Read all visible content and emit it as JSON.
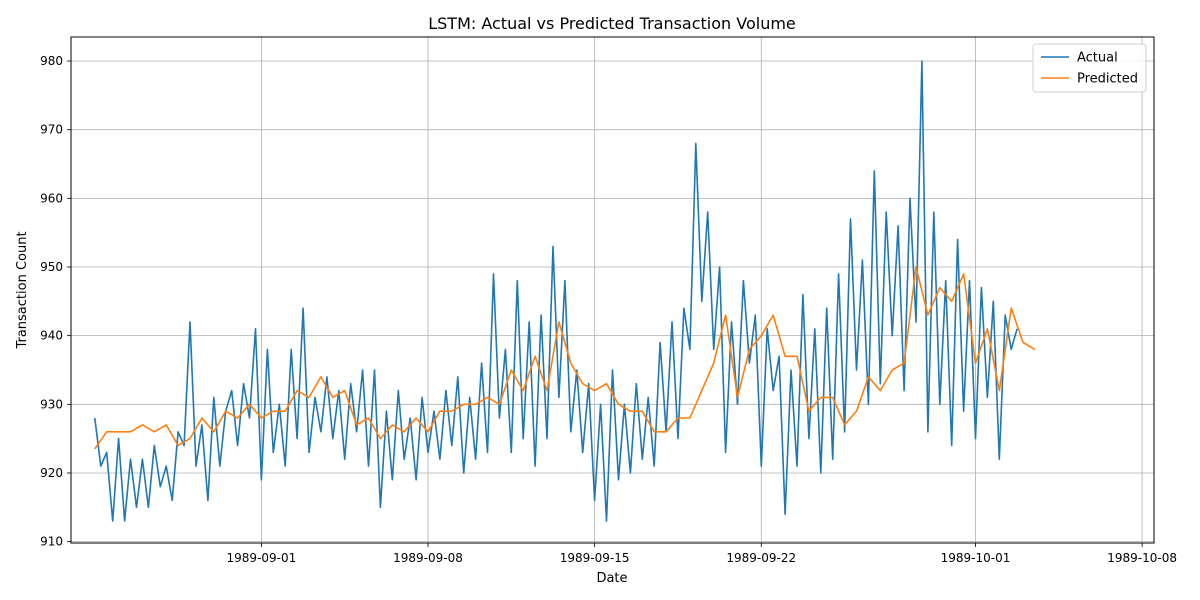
{
  "chart_data": {
    "type": "line",
    "title": "LSTM: Actual vs Predicted Transaction Volume",
    "xlabel": "Date",
    "ylabel": "Transaction Count",
    "x_ticks": [
      "1989-09-01",
      "1989-09-08",
      "1989-09-15",
      "1989-09-22",
      "1989-10-01",
      "1989-10-08"
    ],
    "x_range": [
      "1989-08-24T00:00",
      "1989-10-08T12:00"
    ],
    "y_ticks": [
      910,
      920,
      930,
      940,
      950,
      960,
      970,
      980
    ],
    "ylim": [
      909.8,
      983.5
    ],
    "grid": true,
    "legend_position": "top-right",
    "series": [
      {
        "name": "Actual",
        "color": "#1f77b4",
        "points": [
          [
            "1989-08-25T00:00",
            928
          ],
          [
            "1989-08-25T06:00",
            921
          ],
          [
            "1989-08-25T12:00",
            923
          ],
          [
            "1989-08-25T18:00",
            913
          ],
          [
            "1989-08-26T00:00",
            925
          ],
          [
            "1989-08-26T06:00",
            913
          ],
          [
            "1989-08-26T12:00",
            922
          ],
          [
            "1989-08-26T18:00",
            915
          ],
          [
            "1989-08-27T00:00",
            922
          ],
          [
            "1989-08-27T06:00",
            915
          ],
          [
            "1989-08-27T12:00",
            924
          ],
          [
            "1989-08-27T18:00",
            918
          ],
          [
            "1989-08-28T00:00",
            921
          ],
          [
            "1989-08-28T06:00",
            916
          ],
          [
            "1989-08-28T12:00",
            926
          ],
          [
            "1989-08-28T18:00",
            924
          ],
          [
            "1989-08-29T00:00",
            942
          ],
          [
            "1989-08-29T06:00",
            921
          ],
          [
            "1989-08-29T12:00",
            927
          ],
          [
            "1989-08-29T18:00",
            916
          ],
          [
            "1989-08-30T00:00",
            931
          ],
          [
            "1989-08-30T06:00",
            921
          ],
          [
            "1989-08-30T12:00",
            929
          ],
          [
            "1989-08-30T18:00",
            932
          ],
          [
            "1989-08-31T00:00",
            924
          ],
          [
            "1989-08-31T06:00",
            933
          ],
          [
            "1989-08-31T12:00",
            928
          ],
          [
            "1989-08-31T18:00",
            941
          ],
          [
            "1989-09-01T00:00",
            919
          ],
          [
            "1989-09-01T06:00",
            938
          ],
          [
            "1989-09-01T12:00",
            923
          ],
          [
            "1989-09-01T18:00",
            930
          ],
          [
            "1989-09-02T00:00",
            921
          ],
          [
            "1989-09-02T06:00",
            938
          ],
          [
            "1989-09-02T12:00",
            925
          ],
          [
            "1989-09-02T18:00",
            944
          ],
          [
            "1989-09-03T00:00",
            923
          ],
          [
            "1989-09-03T06:00",
            931
          ],
          [
            "1989-09-03T12:00",
            926
          ],
          [
            "1989-09-03T18:00",
            934
          ],
          [
            "1989-09-04T00:00",
            925
          ],
          [
            "1989-09-04T06:00",
            932
          ],
          [
            "1989-09-04T12:00",
            922
          ],
          [
            "1989-09-04T18:00",
            933
          ],
          [
            "1989-09-05T00:00",
            926
          ],
          [
            "1989-09-05T06:00",
            935
          ],
          [
            "1989-09-05T12:00",
            921
          ],
          [
            "1989-09-05T18:00",
            935
          ],
          [
            "1989-09-06T00:00",
            915
          ],
          [
            "1989-09-06T06:00",
            929
          ],
          [
            "1989-09-06T12:00",
            919
          ],
          [
            "1989-09-06T18:00",
            932
          ],
          [
            "1989-09-07T00:00",
            922
          ],
          [
            "1989-09-07T06:00",
            928
          ],
          [
            "1989-09-07T12:00",
            919
          ],
          [
            "1989-09-07T18:00",
            931
          ],
          [
            "1989-09-08T00:00",
            923
          ],
          [
            "1989-09-08T06:00",
            929
          ],
          [
            "1989-09-08T12:00",
            922
          ],
          [
            "1989-09-08T18:00",
            932
          ],
          [
            "1989-09-09T00:00",
            924
          ],
          [
            "1989-09-09T06:00",
            934
          ],
          [
            "1989-09-09T12:00",
            920
          ],
          [
            "1989-09-09T18:00",
            931
          ],
          [
            "1989-09-10T00:00",
            922
          ],
          [
            "1989-09-10T06:00",
            936
          ],
          [
            "1989-09-10T12:00",
            923
          ],
          [
            "1989-09-10T18:00",
            949
          ],
          [
            "1989-09-11T00:00",
            928
          ],
          [
            "1989-09-11T06:00",
            938
          ],
          [
            "1989-09-11T12:00",
            923
          ],
          [
            "1989-09-11T18:00",
            948
          ],
          [
            "1989-09-12T00:00",
            925
          ],
          [
            "1989-09-12T06:00",
            942
          ],
          [
            "1989-09-12T12:00",
            921
          ],
          [
            "1989-09-12T18:00",
            943
          ],
          [
            "1989-09-13T00:00",
            925
          ],
          [
            "1989-09-13T06:00",
            953
          ],
          [
            "1989-09-13T12:00",
            931
          ],
          [
            "1989-09-13T18:00",
            948
          ],
          [
            "1989-09-14T00:00",
            926
          ],
          [
            "1989-09-14T06:00",
            935
          ],
          [
            "1989-09-14T12:00",
            923
          ],
          [
            "1989-09-14T18:00",
            933
          ],
          [
            "1989-09-15T00:00",
            916
          ],
          [
            "1989-09-15T06:00",
            930
          ],
          [
            "1989-09-15T12:00",
            913
          ],
          [
            "1989-09-15T18:00",
            935
          ],
          [
            "1989-09-16T00:00",
            919
          ],
          [
            "1989-09-16T06:00",
            930
          ],
          [
            "1989-09-16T12:00",
            920
          ],
          [
            "1989-09-16T18:00",
            933
          ],
          [
            "1989-09-17T00:00",
            922
          ],
          [
            "1989-09-17T06:00",
            931
          ],
          [
            "1989-09-17T12:00",
            921
          ],
          [
            "1989-09-17T18:00",
            939
          ],
          [
            "1989-09-18T00:00",
            926
          ],
          [
            "1989-09-18T06:00",
            942
          ],
          [
            "1989-09-18T12:00",
            925
          ],
          [
            "1989-09-18T18:00",
            944
          ],
          [
            "1989-09-19T00:00",
            938
          ],
          [
            "1989-09-19T06:00",
            968
          ],
          [
            "1989-09-19T12:00",
            945
          ],
          [
            "1989-09-19T18:00",
            958
          ],
          [
            "1989-09-20T00:00",
            938
          ],
          [
            "1989-09-20T06:00",
            950
          ],
          [
            "1989-09-20T12:00",
            923
          ],
          [
            "1989-09-20T18:00",
            942
          ],
          [
            "1989-09-21T00:00",
            930
          ],
          [
            "1989-09-21T06:00",
            948
          ],
          [
            "1989-09-21T12:00",
            936
          ],
          [
            "1989-09-21T18:00",
            943
          ],
          [
            "1989-09-22T00:00",
            921
          ],
          [
            "1989-09-22T06:00",
            941
          ],
          [
            "1989-09-22T12:00",
            932
          ],
          [
            "1989-09-22T18:00",
            937
          ],
          [
            "1989-09-23T00:00",
            914
          ],
          [
            "1989-09-23T06:00",
            935
          ],
          [
            "1989-09-23T12:00",
            921
          ],
          [
            "1989-09-23T18:00",
            946
          ],
          [
            "1989-09-24T00:00",
            925
          ],
          [
            "1989-09-24T06:00",
            941
          ],
          [
            "1989-09-24T12:00",
            920
          ],
          [
            "1989-09-24T18:00",
            944
          ],
          [
            "1989-09-25T00:00",
            922
          ],
          [
            "1989-09-25T06:00",
            949
          ],
          [
            "1989-09-25T12:00",
            926
          ],
          [
            "1989-09-25T18:00",
            957
          ],
          [
            "1989-09-26T00:00",
            935
          ],
          [
            "1989-09-26T06:00",
            951
          ],
          [
            "1989-09-26T12:00",
            930
          ],
          [
            "1989-09-26T18:00",
            964
          ],
          [
            "1989-09-27T00:00",
            933
          ],
          [
            "1989-09-27T06:00",
            958
          ],
          [
            "1989-09-27T12:00",
            940
          ],
          [
            "1989-09-27T18:00",
            956
          ],
          [
            "1989-09-28T00:00",
            932
          ],
          [
            "1989-09-28T06:00",
            960
          ],
          [
            "1989-09-28T12:00",
            942
          ],
          [
            "1989-09-28T18:00",
            980
          ],
          [
            "1989-09-29T00:00",
            926
          ],
          [
            "1989-09-29T06:00",
            958
          ],
          [
            "1989-09-29T12:00",
            930
          ],
          [
            "1989-09-29T18:00",
            948
          ],
          [
            "1989-09-30T00:00",
            924
          ],
          [
            "1989-09-30T06:00",
            954
          ],
          [
            "1989-09-30T12:00",
            929
          ],
          [
            "1989-09-30T18:00",
            948
          ],
          [
            "1989-10-01T00:00",
            925
          ],
          [
            "1989-10-01T06:00",
            947
          ],
          [
            "1989-10-01T12:00",
            931
          ],
          [
            "1989-10-01T18:00",
            945
          ],
          [
            "1989-10-02T00:00",
            922
          ],
          [
            "1989-10-02T06:00",
            943
          ],
          [
            "1989-10-02T12:00",
            938
          ],
          [
            "1989-10-02T18:00",
            941
          ]
        ]
      },
      {
        "name": "Predicted",
        "color": "#ff7f0e",
        "points": [
          [
            "1989-08-25T00:00",
            923.5
          ],
          [
            "1989-08-25T12:00",
            926
          ],
          [
            "1989-08-26T00:00",
            926
          ],
          [
            "1989-08-26T12:00",
            926
          ],
          [
            "1989-08-27T00:00",
            927
          ],
          [
            "1989-08-27T12:00",
            926
          ],
          [
            "1989-08-28T00:00",
            927
          ],
          [
            "1989-08-28T12:00",
            924
          ],
          [
            "1989-08-29T00:00",
            925
          ],
          [
            "1989-08-29T12:00",
            928
          ],
          [
            "1989-08-30T00:00",
            926
          ],
          [
            "1989-08-30T12:00",
            929
          ],
          [
            "1989-08-31T00:00",
            928
          ],
          [
            "1989-08-31T12:00",
            930
          ],
          [
            "1989-09-01T00:00",
            928
          ],
          [
            "1989-09-01T12:00",
            929
          ],
          [
            "1989-09-02T00:00",
            929
          ],
          [
            "1989-09-02T12:00",
            932
          ],
          [
            "1989-09-03T00:00",
            931
          ],
          [
            "1989-09-03T12:00",
            934
          ],
          [
            "1989-09-04T00:00",
            931
          ],
          [
            "1989-09-04T12:00",
            932
          ],
          [
            "1989-09-05T00:00",
            927
          ],
          [
            "1989-09-05T12:00",
            928
          ],
          [
            "1989-09-06T00:00",
            925
          ],
          [
            "1989-09-06T12:00",
            927
          ],
          [
            "1989-09-07T00:00",
            926
          ],
          [
            "1989-09-07T12:00",
            928
          ],
          [
            "1989-09-08T00:00",
            926
          ],
          [
            "1989-09-08T12:00",
            929
          ],
          [
            "1989-09-09T00:00",
            929
          ],
          [
            "1989-09-09T12:00",
            930
          ],
          [
            "1989-09-10T00:00",
            930
          ],
          [
            "1989-09-10T12:00",
            931
          ],
          [
            "1989-09-11T00:00",
            930
          ],
          [
            "1989-09-11T12:00",
            935
          ],
          [
            "1989-09-12T00:00",
            932
          ],
          [
            "1989-09-12T12:00",
            937
          ],
          [
            "1989-09-13T00:00",
            932
          ],
          [
            "1989-09-13T12:00",
            942
          ],
          [
            "1989-09-14T00:00",
            936
          ],
          [
            "1989-09-14T12:00",
            933
          ],
          [
            "1989-09-15T00:00",
            932
          ],
          [
            "1989-09-15T12:00",
            933
          ],
          [
            "1989-09-16T00:00",
            930
          ],
          [
            "1989-09-16T12:00",
            929
          ],
          [
            "1989-09-17T00:00",
            929
          ],
          [
            "1989-09-17T12:00",
            926
          ],
          [
            "1989-09-18T00:00",
            926
          ],
          [
            "1989-09-18T12:00",
            928
          ],
          [
            "1989-09-19T00:00",
            928
          ],
          [
            "1989-09-19T12:00",
            932
          ],
          [
            "1989-09-20T00:00",
            936
          ],
          [
            "1989-09-20T12:00",
            943
          ],
          [
            "1989-09-21T00:00",
            931
          ],
          [
            "1989-09-21T12:00",
            938
          ],
          [
            "1989-09-22T00:00",
            940
          ],
          [
            "1989-09-22T12:00",
            943
          ],
          [
            "1989-09-23T00:00",
            937
          ],
          [
            "1989-09-23T12:00",
            937
          ],
          [
            "1989-09-24T00:00",
            929
          ],
          [
            "1989-09-24T12:00",
            931
          ],
          [
            "1989-09-25T00:00",
            931
          ],
          [
            "1989-09-25T12:00",
            927
          ],
          [
            "1989-09-26T00:00",
            929
          ],
          [
            "1989-09-26T12:00",
            934
          ],
          [
            "1989-09-27T00:00",
            932
          ],
          [
            "1989-09-27T12:00",
            935
          ],
          [
            "1989-09-28T00:00",
            936
          ],
          [
            "1989-09-28T12:00",
            950
          ],
          [
            "1989-09-29T00:00",
            943
          ],
          [
            "1989-09-29T12:00",
            947
          ],
          [
            "1989-09-30T00:00",
            945
          ],
          [
            "1989-09-30T12:00",
            949
          ],
          [
            "1989-10-01T00:00",
            936
          ],
          [
            "1989-10-01T12:00",
            941
          ],
          [
            "1989-10-02T00:00",
            932
          ],
          [
            "1989-10-02T12:00",
            944
          ],
          [
            "1989-10-03T00:00",
            939
          ],
          [
            "1989-10-03T12:00",
            938
          ]
        ]
      }
    ]
  }
}
